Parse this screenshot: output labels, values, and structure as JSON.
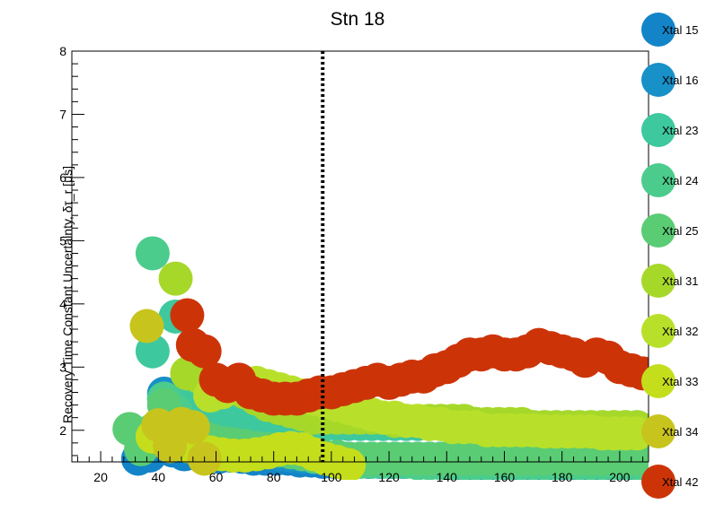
{
  "chart_data": {
    "type": "scatter",
    "title": "Stn 18",
    "xlabel": "",
    "ylabel": "Recovery Time Constant Uncertainty,   δτ_r [μs]",
    "xlim": [
      10,
      210
    ],
    "ylim": [
      1.5,
      8
    ],
    "x_ticks": [
      20,
      40,
      60,
      80,
      100,
      120,
      140,
      160,
      180,
      200
    ],
    "x_tick_labels": [
      "20",
      "40",
      "60",
      "80",
      "100",
      "120",
      "140",
      "160",
      "180",
      "200"
    ],
    "y_ticks": [
      2,
      3,
      4,
      5,
      6,
      7,
      8
    ],
    "y_tick_labels": [
      "2",
      "3",
      "4",
      "5",
      "6",
      "7",
      "8"
    ],
    "grid": false,
    "legend_position": "right",
    "vline": {
      "x": 97,
      "style": "dotted"
    },
    "series": [
      {
        "name": "Xtal 15",
        "color": "#1384c8",
        "x": [
          33,
          37,
          41,
          45,
          49,
          53,
          57,
          61,
          65,
          69,
          73,
          77,
          81,
          85,
          89,
          93,
          97,
          101,
          105,
          109,
          113,
          117,
          121,
          125,
          129,
          133,
          137,
          141,
          145,
          149,
          153,
          157,
          161,
          165,
          169,
          173,
          177,
          181,
          185,
          189,
          193,
          197,
          201,
          205
        ],
        "y": [
          1.55,
          1.6,
          1.72,
          1.68,
          1.62,
          1.65,
          1.6,
          1.58,
          1.6,
          1.58,
          1.55,
          1.55,
          1.55,
          1.55,
          1.52,
          1.52,
          1.5,
          1.5,
          1.5,
          1.5,
          1.5,
          1.5,
          1.5,
          1.5,
          1.5,
          1.5,
          1.5,
          1.48,
          1.48,
          1.48,
          1.48,
          1.48,
          1.48,
          1.48,
          1.48,
          1.45,
          1.45,
          1.45,
          1.45,
          1.45,
          1.45,
          1.45,
          1.45,
          1.45
        ]
      },
      {
        "name": "Xtal 16",
        "color": "#1890c8",
        "x": [
          42,
          46,
          50,
          54,
          58,
          62,
          66,
          70,
          74,
          78,
          82,
          86,
          90,
          94,
          98,
          102,
          106,
          110,
          114,
          118,
          122,
          126,
          130,
          134,
          138,
          142,
          146,
          150,
          154,
          158,
          162,
          166,
          170,
          174,
          178,
          182,
          186,
          190,
          194,
          198,
          202,
          206
        ],
        "y": [
          2.58,
          2.45,
          2.2,
          2.0,
          1.9,
          1.82,
          1.75,
          1.7,
          1.68,
          1.65,
          1.62,
          1.6,
          1.58,
          1.57,
          1.56,
          1.55,
          1.55,
          1.55,
          1.55,
          1.55,
          1.55,
          1.55,
          1.55,
          1.55,
          1.55,
          1.55,
          1.55,
          1.55,
          1.55,
          1.55,
          1.55,
          1.55,
          1.55,
          1.55,
          1.55,
          1.55,
          1.55,
          1.55,
          1.55,
          1.55,
          1.55,
          1.55
        ]
      },
      {
        "name": "Xtal 23",
        "color": "#3ec89e",
        "x": [
          38,
          42,
          46,
          50,
          54,
          58,
          62,
          66,
          70,
          74,
          78,
          82,
          86,
          90,
          94,
          98,
          102,
          106,
          110,
          114,
          118,
          122,
          126,
          130,
          134,
          138,
          142,
          146,
          150,
          154,
          158,
          162,
          166,
          170,
          174,
          178,
          182,
          186,
          190,
          194,
          198,
          202,
          206
        ],
        "y": [
          3.25,
          2.5,
          3.8,
          2.5,
          2.4,
          2.3,
          2.25,
          2.2,
          2.2,
          2.2,
          2.2,
          2.2,
          2.15,
          2.15,
          2.1,
          2.1,
          2.1,
          2.1,
          2.1,
          2.1,
          2.1,
          2.1,
          2.1,
          2.1,
          2.1,
          2.1,
          2.1,
          2.1,
          2.1,
          2.05,
          2.05,
          2.05,
          2.05,
          2.05,
          2.05,
          2.05,
          2.05,
          2.05,
          2.05,
          2.05,
          2.05,
          2.05,
          2.05
        ]
      },
      {
        "name": "Xtal 24",
        "color": "#4ccc8c",
        "x": [
          38,
          42,
          46,
          50,
          54,
          58,
          62,
          66,
          70,
          74,
          78,
          82,
          86,
          90,
          94,
          98,
          102,
          106,
          110,
          114,
          118,
          122,
          126,
          130,
          134,
          138,
          142,
          146,
          150,
          154,
          158,
          162,
          166,
          170,
          174,
          178,
          182,
          186,
          190,
          194,
          198,
          202,
          206
        ],
        "y": [
          4.8,
          2.5,
          2.3,
          2.0,
          1.9,
          1.85,
          1.8,
          1.75,
          1.72,
          1.7,
          1.7,
          1.7,
          1.68,
          1.62,
          1.58,
          1.55,
          1.55,
          1.52,
          1.5,
          1.5,
          1.5,
          1.5,
          1.5,
          1.48,
          1.48,
          1.48,
          1.48,
          1.48,
          1.48,
          1.48,
          1.48,
          1.48,
          1.48,
          1.48,
          1.48,
          1.48,
          1.48,
          1.48,
          1.48,
          1.48,
          1.48,
          1.48,
          1.48
        ]
      },
      {
        "name": "Xtal 25",
        "color": "#5acc74",
        "x": [
          30,
          34,
          38,
          42,
          46,
          50,
          54,
          58,
          62,
          66,
          70,
          74,
          78,
          82,
          86,
          90,
          94,
          98,
          102,
          106,
          110,
          114,
          118,
          122,
          126,
          130,
          134,
          138,
          142,
          146,
          150,
          154,
          158,
          162,
          166,
          170,
          174,
          178,
          182,
          186,
          190,
          194,
          198,
          202,
          206
        ],
        "y": [
          2.02,
          1.7,
          2.0,
          2.4,
          2.0,
          1.95,
          1.9,
          1.85,
          1.8,
          1.78,
          1.75,
          1.72,
          1.7,
          1.68,
          1.65,
          1.62,
          1.6,
          1.58,
          1.58,
          1.55,
          1.55,
          1.55,
          1.55,
          1.55,
          1.55,
          1.55,
          1.55,
          1.55,
          1.55,
          1.55,
          1.55,
          1.55,
          1.55,
          1.55,
          1.55,
          1.55,
          1.55,
          1.55,
          1.55,
          1.55,
          1.55,
          1.55,
          1.55,
          1.55,
          1.55
        ]
      },
      {
        "name": "Xtal 31",
        "color": "#a6d82a",
        "x": [
          46,
          50,
          54,
          58,
          62,
          66,
          70,
          74,
          78,
          82,
          86,
          90,
          94,
          98,
          102,
          106,
          110,
          114,
          118,
          122,
          126,
          130,
          134,
          138,
          142,
          146,
          150,
          154,
          158,
          162,
          166,
          170,
          174,
          178,
          182,
          186,
          190,
          194,
          198,
          202,
          206
        ],
        "y": [
          4.4,
          2.9,
          2.85,
          2.8,
          2.75,
          2.7,
          2.6,
          2.5,
          2.4,
          2.35,
          2.3,
          2.25,
          2.2,
          2.2,
          2.2,
          2.2,
          2.2,
          2.2,
          2.2,
          2.15,
          2.15,
          2.15,
          2.15,
          2.15,
          2.15,
          2.15,
          2.1,
          2.1,
          2.1,
          2.1,
          2.1,
          2.05,
          2.05,
          2.05,
          2.05,
          2.05,
          2.05,
          2.05,
          2.05,
          2.05,
          2.05
        ]
      },
      {
        "name": "Xtal 32",
        "color": "#b8e02a",
        "x": [
          58,
          62,
          66,
          70,
          74,
          78,
          82,
          86,
          90,
          94,
          98,
          102,
          106,
          110,
          114,
          118,
          122,
          126,
          130,
          134,
          138,
          142,
          146,
          150,
          154,
          158,
          162,
          166,
          170,
          174,
          178,
          182,
          186,
          190,
          194,
          198,
          202,
          206
        ],
        "y": [
          2.55,
          2.6,
          2.7,
          2.75,
          2.75,
          2.7,
          2.65,
          2.6,
          2.55,
          2.5,
          2.45,
          2.4,
          2.35,
          2.3,
          2.25,
          2.2,
          2.2,
          2.15,
          2.15,
          2.1,
          2.1,
          2.05,
          2.05,
          2.05,
          2.0,
          2.0,
          2.0,
          2.0,
          2.0,
          1.98,
          1.98,
          1.98,
          1.98,
          1.98,
          1.95,
          1.95,
          1.95,
          1.95
        ]
      },
      {
        "name": "Xtal 33",
        "color": "#c4de1c",
        "x": [
          38,
          42,
          46,
          50,
          54,
          58,
          62,
          66,
          70,
          74,
          78,
          82,
          86,
          90,
          94,
          98,
          102,
          106
        ],
        "y": [
          1.9,
          1.85,
          1.8,
          1.75,
          1.7,
          1.65,
          1.62,
          1.6,
          1.6,
          1.62,
          1.65,
          1.7,
          1.72,
          1.7,
          1.62,
          1.55,
          1.5,
          1.45
        ]
      },
      {
        "name": "Xtal 34",
        "color": "#c8c41e",
        "x": [
          36,
          40,
          44,
          48,
          52,
          56
        ],
        "y": [
          3.65,
          2.08,
          1.75,
          2.1,
          2.05,
          1.55
        ]
      },
      {
        "name": "Xtal 42",
        "color": "#cc3408",
        "x": [
          50,
          52,
          56,
          60,
          64,
          68,
          72,
          76,
          80,
          84,
          88,
          92,
          96,
          100,
          104,
          108,
          112,
          116,
          120,
          124,
          128,
          132,
          136,
          140,
          144,
          148,
          152,
          156,
          160,
          164,
          168,
          172,
          176,
          180,
          184,
          188,
          192,
          196,
          200,
          204,
          208
        ],
        "y": [
          3.82,
          3.35,
          3.25,
          2.8,
          2.7,
          2.8,
          2.6,
          2.55,
          2.5,
          2.5,
          2.5,
          2.55,
          2.6,
          2.6,
          2.65,
          2.7,
          2.75,
          2.8,
          2.75,
          2.8,
          2.85,
          2.85,
          2.95,
          3.0,
          3.1,
          3.2,
          3.2,
          3.25,
          3.2,
          3.2,
          3.25,
          3.35,
          3.3,
          3.25,
          3.2,
          3.1,
          3.2,
          3.15,
          3.0,
          2.95,
          2.9
        ]
      }
    ]
  }
}
